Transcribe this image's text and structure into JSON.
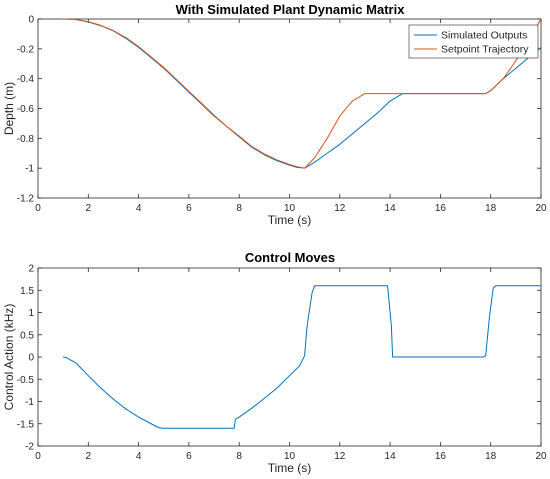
{
  "chart_data": [
    {
      "type": "line",
      "title": "With Simulated Plant Dynamic Matrix",
      "xlabel": "Time (s)",
      "ylabel": "Depth (m)",
      "xlim": [
        0,
        20
      ],
      "ylim": [
        -1.2,
        0
      ],
      "xticks": [
        "0",
        "2",
        "4",
        "6",
        "8",
        "10",
        "12",
        "14",
        "16",
        "18",
        "20"
      ],
      "yticks": [
        "0",
        "-0.2",
        "-0.4",
        "-0.6",
        "-0.8",
        "-1",
        "-1.2"
      ],
      "grid": false,
      "legend_position": "top-right",
      "series": [
        {
          "name": "Simulated Outputs",
          "color": "#0072BD",
          "x": [
            1,
            1.5,
            2,
            2.5,
            3,
            3.5,
            4,
            4.5,
            5,
            5.5,
            6,
            6.5,
            7,
            7.5,
            8,
            8.5,
            9,
            9.5,
            10,
            10.3,
            10.6,
            11,
            11.5,
            12,
            12.5,
            13,
            13.5,
            14,
            14.5,
            15,
            16,
            17,
            17.8,
            18,
            18.5,
            19,
            19.5,
            20
          ],
          "y": [
            0,
            -0.003,
            -0.02,
            -0.045,
            -0.08,
            -0.13,
            -0.19,
            -0.26,
            -0.33,
            -0.41,
            -0.49,
            -0.57,
            -0.65,
            -0.72,
            -0.79,
            -0.86,
            -0.91,
            -0.95,
            -0.98,
            -0.995,
            -1.0,
            -0.96,
            -0.9,
            -0.84,
            -0.77,
            -0.7,
            -0.63,
            -0.55,
            -0.5,
            -0.5,
            -0.5,
            -0.5,
            -0.5,
            -0.48,
            -0.4,
            -0.33,
            -0.26,
            -0.19
          ]
        },
        {
          "name": "Setpoint Trajectory",
          "color": "#D95319",
          "x": [
            1,
            1.5,
            2,
            2.5,
            3,
            3.5,
            4,
            4.5,
            5,
            5.5,
            6,
            6.5,
            7,
            7.5,
            8,
            8.5,
            9,
            9.5,
            10,
            10.3,
            10.6,
            11,
            11.5,
            12,
            12.5,
            13,
            13.5,
            14,
            15,
            16,
            17,
            17.8,
            18,
            18.5,
            19,
            19.5,
            20
          ],
          "y": [
            0,
            -0.003,
            -0.018,
            -0.043,
            -0.078,
            -0.125,
            -0.185,
            -0.255,
            -0.325,
            -0.405,
            -0.485,
            -0.565,
            -0.645,
            -0.72,
            -0.785,
            -0.855,
            -0.905,
            -0.945,
            -0.975,
            -0.99,
            -1.0,
            -0.93,
            -0.8,
            -0.65,
            -0.55,
            -0.5,
            -0.5,
            -0.5,
            -0.5,
            -0.5,
            -0.5,
            -0.5,
            -0.48,
            -0.4,
            -0.28,
            -0.14,
            0
          ]
        }
      ]
    },
    {
      "type": "line",
      "title": "Control Moves",
      "xlabel": "Time (s)",
      "ylabel": "Control Action (kHz)",
      "xlim": [
        0,
        20
      ],
      "ylim": [
        -2,
        2
      ],
      "xticks": [
        "0",
        "2",
        "4",
        "6",
        "8",
        "10",
        "12",
        "14",
        "16",
        "18",
        "20"
      ],
      "yticks": [
        "2",
        "1.5",
        "1",
        "0.5",
        "0",
        "-0.5",
        "-1",
        "-1.5",
        "-2"
      ],
      "grid": false,
      "series": [
        {
          "color": "#0072BD",
          "x": [
            1,
            1.15,
            1.3,
            1.5,
            2,
            2.5,
            3,
            3.5,
            4,
            4.5,
            4.8,
            5,
            6,
            7,
            7.8,
            7.85,
            8,
            8.5,
            9,
            9.5,
            10,
            10.4,
            10.6,
            10.7,
            10.9,
            11,
            12,
            13,
            13.9,
            14.05,
            14.1,
            15,
            16,
            17,
            17.7,
            17.8,
            17.95,
            18.1,
            18.2,
            19,
            20
          ],
          "y": [
            0,
            -0.02,
            -0.07,
            -0.13,
            -0.42,
            -0.7,
            -0.95,
            -1.17,
            -1.35,
            -1.5,
            -1.59,
            -1.6,
            -1.6,
            -1.6,
            -1.6,
            -1.4,
            -1.35,
            -1.15,
            -0.93,
            -0.7,
            -0.42,
            -0.2,
            0.03,
            0.7,
            1.45,
            1.6,
            1.6,
            1.6,
            1.6,
            0.7,
            0,
            0,
            0,
            0,
            0,
            0.03,
            0.9,
            1.55,
            1.6,
            1.6,
            1.6
          ]
        }
      ]
    }
  ],
  "legend_title": "",
  "colors": {
    "axis": "#262626",
    "background": "#ffffff"
  }
}
